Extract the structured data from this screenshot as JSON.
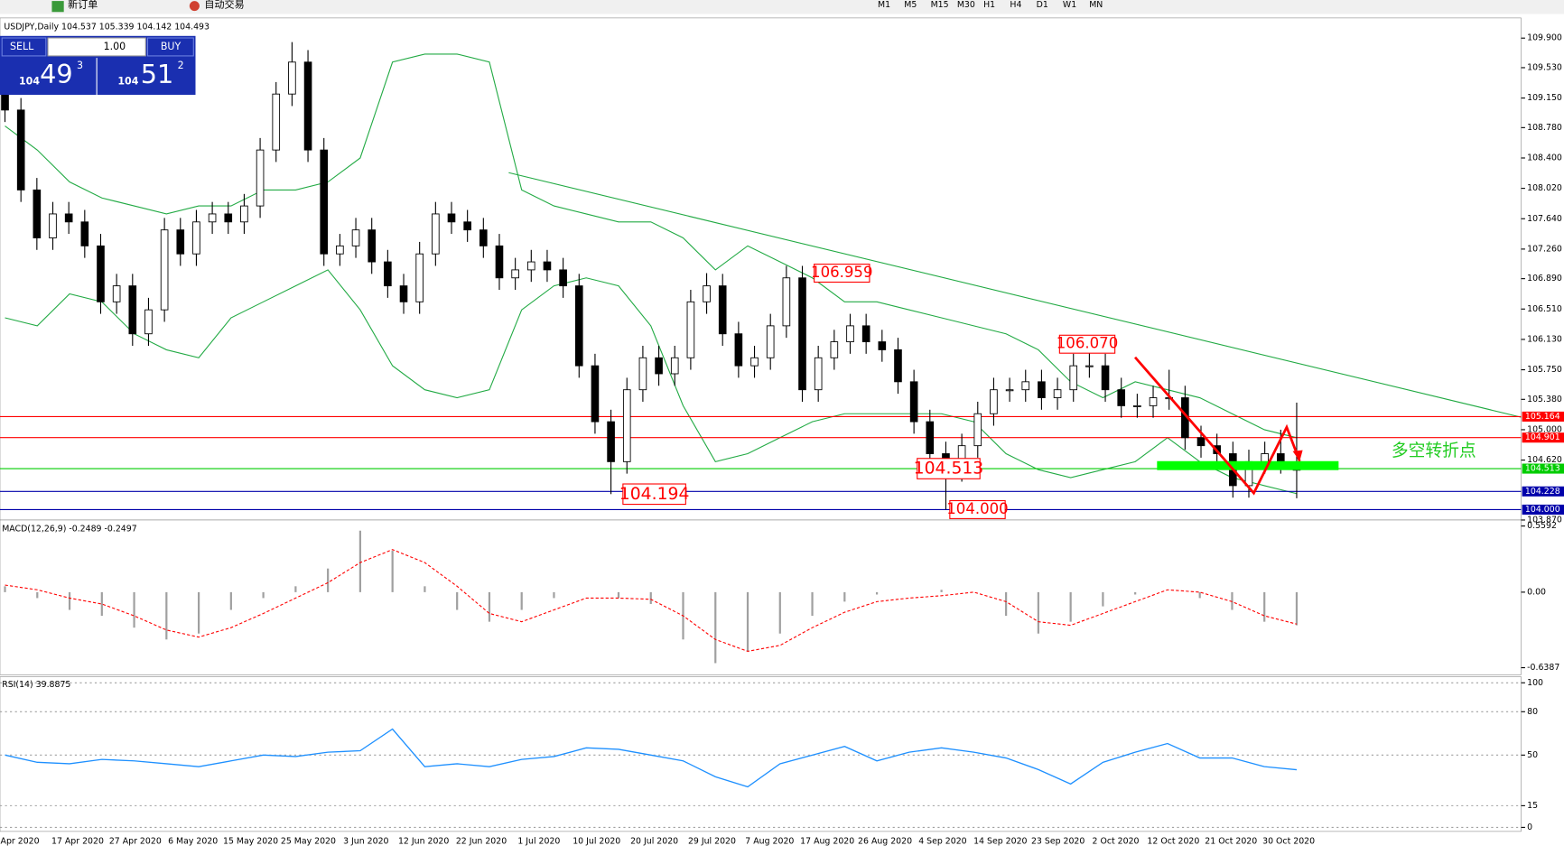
{
  "toolbar": {
    "new_order": "新订单",
    "auto_trading": "自动交易",
    "timeframes": [
      "M1",
      "M5",
      "M15",
      "M30",
      "H1",
      "H4",
      "D1",
      "W1",
      "MN"
    ]
  },
  "trade_panel": {
    "sell": "SELL",
    "buy": "BUY",
    "volume": "1.00",
    "bid_big": "104",
    "bid_pips": "49",
    "bid_point": "3",
    "ask_big": "104",
    "ask_pips": "51",
    "ask_point": "2"
  },
  "x_labels": [
    "Apr 2020",
    "17 Apr 2020",
    "27 Apr 2020",
    "6 May 2020",
    "15 May 2020",
    "25 May 2020",
    "3 Jun 2020",
    "12 Jun 2020",
    "22 Jun 2020",
    "1 Jul 2020",
    "10 Jul 2020",
    "20 Jul 2020",
    "29 Jul 2020",
    "7 Aug 2020",
    "17 Aug 2020",
    "26 Aug 2020",
    "4 Sep 2020",
    "14 Sep 2020",
    "23 Sep 2020",
    "2 Oct 2020",
    "12 Oct 2020",
    "21 Oct 2020",
    "30 Oct 2020"
  ],
  "chart_data": [
    {
      "type": "candlestick",
      "title": "USDJPY,Daily 104.537 105.339 104.142 104.493",
      "open": [
        109.2,
        109.0,
        108.0,
        107.4,
        107.7,
        107.6,
        107.3,
        106.6,
        106.8,
        106.2,
        106.5,
        107.5,
        107.2,
        107.6,
        107.7,
        107.6,
        107.8,
        108.5,
        109.2,
        109.6,
        108.5,
        107.2,
        107.3,
        107.5,
        107.1,
        106.8,
        106.6,
        107.2,
        107.7,
        107.6,
        107.5,
        107.3,
        106.9,
        107.0,
        107.1,
        107.0,
        106.8,
        105.8,
        105.1,
        104.6,
        105.5,
        105.9,
        105.7,
        105.9,
        106.6,
        106.8,
        106.2,
        105.8,
        105.9,
        106.3,
        106.9,
        105.5,
        105.9,
        106.1,
        106.3,
        106.1,
        106.0,
        105.6,
        105.1,
        104.7,
        104.5,
        104.8,
        105.2,
        105.5,
        105.5,
        105.6,
        105.4,
        105.5,
        105.8,
        105.8,
        105.5,
        105.3,
        105.3,
        105.4,
        105.4,
        104.9,
        104.8,
        104.7,
        104.3,
        104.6,
        104.7,
        104.537
      ],
      "high": [
        109.35,
        109.15,
        108.15,
        107.85,
        107.85,
        107.75,
        107.45,
        106.95,
        106.95,
        106.65,
        107.65,
        107.65,
        107.75,
        107.85,
        107.85,
        107.95,
        108.65,
        109.35,
        109.85,
        109.75,
        108.65,
        107.45,
        107.65,
        107.65,
        107.25,
        106.95,
        107.35,
        107.85,
        107.85,
        107.75,
        107.65,
        107.45,
        107.15,
        107.25,
        107.25,
        107.15,
        106.95,
        105.95,
        105.25,
        105.65,
        106.05,
        106.05,
        106.05,
        106.75,
        106.959,
        106.95,
        106.35,
        106.05,
        106.45,
        107.05,
        107.05,
        106.05,
        106.25,
        106.45,
        106.45,
        106.25,
        106.15,
        105.75,
        105.25,
        104.85,
        104.95,
        105.35,
        105.65,
        105.65,
        105.75,
        105.75,
        105.65,
        105.95,
        106.07,
        105.95,
        105.65,
        105.45,
        105.55,
        105.75,
        105.55,
        105.05,
        104.95,
        104.85,
        104.75,
        104.85,
        105.0,
        105.339
      ],
      "low": [
        108.85,
        107.85,
        107.25,
        107.25,
        107.45,
        107.15,
        106.45,
        106.45,
        106.05,
        106.05,
        106.35,
        107.05,
        107.05,
        107.45,
        107.45,
        107.45,
        107.65,
        108.35,
        109.05,
        108.35,
        107.05,
        107.05,
        107.15,
        106.95,
        106.65,
        106.45,
        106.45,
        107.05,
        107.45,
        107.35,
        107.15,
        106.75,
        106.75,
        106.85,
        106.85,
        106.65,
        105.65,
        104.95,
        104.194,
        104.45,
        105.35,
        105.55,
        105.55,
        105.75,
        106.45,
        106.05,
        105.65,
        105.65,
        105.75,
        106.15,
        105.35,
        105.35,
        105.75,
        105.95,
        105.95,
        105.85,
        105.45,
        104.95,
        104.55,
        104.0,
        104.35,
        104.65,
        105.05,
        105.35,
        105.35,
        105.25,
        105.25,
        105.35,
        105.65,
        105.35,
        105.15,
        105.15,
        105.15,
        105.25,
        104.75,
        104.65,
        104.55,
        104.15,
        104.15,
        104.45,
        104.45,
        104.142
      ],
      "close": [
        109.0,
        108.0,
        107.4,
        107.7,
        107.6,
        107.3,
        106.6,
        106.8,
        106.2,
        106.5,
        107.5,
        107.2,
        107.6,
        107.7,
        107.6,
        107.8,
        108.5,
        109.2,
        109.6,
        108.5,
        107.2,
        107.3,
        107.5,
        107.1,
        106.8,
        106.6,
        107.2,
        107.7,
        107.6,
        107.5,
        107.3,
        106.9,
        107.0,
        107.1,
        107.0,
        106.8,
        105.8,
        105.1,
        104.6,
        105.5,
        105.9,
        105.7,
        105.9,
        106.6,
        106.8,
        106.2,
        105.8,
        105.9,
        106.3,
        106.9,
        105.5,
        105.9,
        106.1,
        106.3,
        106.1,
        106.0,
        105.6,
        105.1,
        104.7,
        104.5,
        104.8,
        105.2,
        105.5,
        105.5,
        105.6,
        105.4,
        105.5,
        105.8,
        105.8,
        105.5,
        105.3,
        105.3,
        105.4,
        105.4,
        104.9,
        104.8,
        104.7,
        104.3,
        104.6,
        104.7,
        104.6,
        104.493
      ],
      "bands": [
        {
          "color": "#22aa44",
          "values": [
            108.8,
            108.5,
            108.1,
            107.9,
            107.8,
            107.7,
            107.8,
            107.8,
            108.0,
            108.0,
            108.1,
            108.4,
            109.6,
            109.7,
            109.7,
            109.6,
            108.0,
            107.8,
            107.7,
            107.6,
            107.6,
            107.4,
            107.0,
            107.3,
            107.1,
            106.9,
            106.6,
            106.6,
            106.5,
            106.4,
            106.3,
            106.2,
            106.0,
            105.6,
            105.4,
            105.6,
            105.5,
            105.4,
            105.2,
            105.0,
            104.9
          ]
        },
        {
          "color": "#22aa44",
          "values": [
            106.4,
            106.3,
            106.7,
            106.6,
            106.2,
            106.0,
            105.9,
            106.4,
            106.6,
            106.8,
            107.0,
            106.5,
            105.8,
            105.5,
            105.4,
            105.5,
            106.5,
            106.8,
            106.9,
            106.8,
            106.3,
            105.3,
            104.6,
            104.7,
            104.9,
            105.1,
            105.2,
            105.2,
            105.2,
            105.2,
            105.1,
            104.7,
            104.5,
            104.4,
            104.5,
            104.6,
            104.9,
            104.6,
            104.4,
            104.3,
            104.2
          ]
        }
      ],
      "ylim": [
        103.87,
        110.152
      ],
      "yticks": [
        {
          "value": 109.9,
          "label": "109.900"
        },
        {
          "value": 109.53,
          "label": "109.530"
        },
        {
          "value": 109.15,
          "label": "109.150"
        },
        {
          "value": 108.78,
          "label": "108.780"
        },
        {
          "value": 108.4,
          "label": "108.400"
        },
        {
          "value": 108.02,
          "label": "108.020"
        },
        {
          "value": 107.64,
          "label": "107.640"
        },
        {
          "value": 107.26,
          "label": "107.260"
        },
        {
          "value": 106.89,
          "label": "106.890"
        },
        {
          "value": 106.51,
          "label": "106.510"
        },
        {
          "value": 106.13,
          "label": "106.130"
        },
        {
          "value": 105.75,
          "label": "105.750"
        },
        {
          "value": 105.38,
          "label": "105.380"
        },
        {
          "value": 105.0,
          "label": "105.000"
        },
        {
          "value": 104.62,
          "label": "104.620"
        },
        {
          "value": 103.87,
          "label": "103.870"
        }
      ],
      "levels": [
        {
          "value": 105.164,
          "label": "105.164",
          "color": "#ff0000"
        },
        {
          "value": 104.901,
          "label": "104.901",
          "color": "#ff0000"
        },
        {
          "value": 104.513,
          "label": "104.513",
          "color": "#00cc00"
        },
        {
          "value": 104.228,
          "label": "104.228",
          "color": "#0000aa"
        },
        {
          "value": 104.0,
          "label": "104.000",
          "color": "#0000aa"
        }
      ],
      "annotations": [
        {
          "value": 106.959,
          "text": "106.959"
        },
        {
          "value": 106.07,
          "text": "106.070"
        },
        {
          "value": 104.513,
          "text": "104.513"
        },
        {
          "value": 104.194,
          "text": "104.194"
        },
        {
          "value": 104.0,
          "text": "104.000"
        }
      ],
      "note": "多空转折点"
    },
    {
      "type": "macd",
      "title": "MACD(12,26,9) -0.2489 -0.2497",
      "values": [
        0.05,
        -0.05,
        -0.15,
        -0.2,
        -0.3,
        -0.4,
        -0.35,
        -0.15,
        -0.05,
        0.05,
        0.2,
        0.52,
        0.35,
        0.05,
        -0.15,
        -0.25,
        -0.15,
        -0.05,
        0.0,
        -0.05,
        -0.1,
        -0.4,
        -0.6,
        -0.5,
        -0.35,
        -0.2,
        -0.08,
        -0.02,
        0.0,
        0.02,
        0.0,
        -0.2,
        -0.35,
        -0.25,
        -0.12,
        -0.02,
        0.0,
        -0.05,
        -0.15,
        -0.25,
        -0.28
      ],
      "signal": [
        0.06,
        0.02,
        -0.05,
        -0.1,
        -0.2,
        -0.32,
        -0.38,
        -0.3,
        -0.18,
        -0.05,
        0.08,
        0.25,
        0.36,
        0.25,
        0.05,
        -0.18,
        -0.25,
        -0.15,
        -0.05,
        -0.05,
        -0.06,
        -0.2,
        -0.4,
        -0.5,
        -0.45,
        -0.3,
        -0.17,
        -0.08,
        -0.05,
        -0.03,
        0.0,
        -0.08,
        -0.25,
        -0.28,
        -0.18,
        -0.08,
        0.02,
        0.0,
        -0.08,
        -0.2,
        -0.27
      ],
      "ylim": [
        -0.698,
        0.61
      ],
      "yticks": [
        0.5592,
        {
          "value": 0,
          "label": "0.00"
        },
        -0.6387
      ]
    },
    {
      "type": "rsi",
      "title": "RSI(14) 39.8875",
      "values": [
        50,
        45,
        44,
        47,
        46,
        44,
        42,
        46,
        50,
        49,
        52,
        53,
        68,
        42,
        44,
        42,
        47,
        49,
        55,
        54,
        50,
        46,
        35,
        28,
        44,
        50,
        56,
        46,
        52,
        55,
        52,
        48,
        40,
        30,
        45,
        52,
        58,
        48,
        48,
        42,
        39.8875
      ],
      "color": "#1e90ff",
      "grid": true,
      "ylim": [
        -2.8,
        104.2
      ],
      "yticks": [
        100,
        80,
        50,
        15,
        0
      ]
    }
  ]
}
